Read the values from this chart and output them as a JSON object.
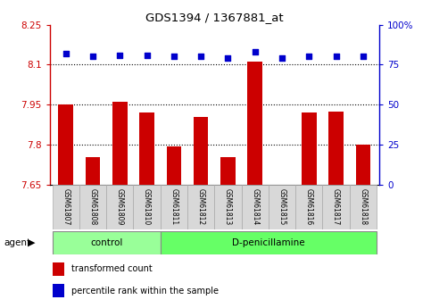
{
  "title": "GDS1394 / 1367881_at",
  "samples": [
    "GSM61807",
    "GSM61808",
    "GSM61809",
    "GSM61810",
    "GSM61811",
    "GSM61812",
    "GSM61813",
    "GSM61814",
    "GSM61815",
    "GSM61816",
    "GSM61817",
    "GSM61818"
  ],
  "transformed_count": [
    7.95,
    7.755,
    7.96,
    7.92,
    7.795,
    7.905,
    7.755,
    8.11,
    7.651,
    7.92,
    7.925,
    7.8
  ],
  "percentile_rank": [
    82,
    80,
    81,
    81,
    80,
    80,
    79,
    83,
    79,
    80,
    80,
    80
  ],
  "group_labels": [
    "control",
    "D-penicillamine"
  ],
  "group_ranges": [
    [
      0,
      4
    ],
    [
      4,
      12
    ]
  ],
  "ylim_left": [
    7.65,
    8.25
  ],
  "ylim_right": [
    0,
    100
  ],
  "yticks_left": [
    7.65,
    7.8,
    7.95,
    8.1,
    8.25
  ],
  "yticks_right": [
    0,
    25,
    50,
    75,
    100
  ],
  "ytick_labels_left": [
    "7.65",
    "7.8",
    "7.95",
    "8.1",
    "8.25"
  ],
  "ytick_labels_right": [
    "0",
    "25",
    "50",
    "75",
    "100%"
  ],
  "hlines": [
    7.8,
    7.95,
    8.1
  ],
  "bar_color": "#cc0000",
  "dot_color": "#0000cc",
  "bar_bottom": 7.65,
  "control_color": "#99ff99",
  "dpenicillamine_color": "#66ff66",
  "agent_label": "agent",
  "legend_items": [
    {
      "label": "transformed count",
      "color": "#cc0000"
    },
    {
      "label": "percentile rank within the sample",
      "color": "#0000cc"
    }
  ],
  "n_control": 4,
  "n_total": 12
}
